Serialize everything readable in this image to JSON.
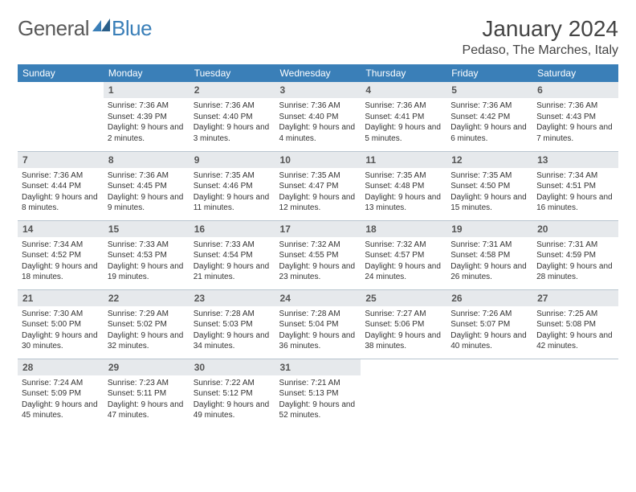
{
  "logo": {
    "general": "General",
    "blue": "Blue"
  },
  "title": "January 2024",
  "location": "Pedaso, The Marches, Italy",
  "colors": {
    "header_bg": "#3a7fb8",
    "header_text": "#ffffff",
    "daynum_bg": "#e6e9ec",
    "row_border": "#b8c5cf",
    "text": "#333333",
    "logo_gray": "#5a5a5a",
    "logo_blue": "#3a7fb8"
  },
  "weekdays": [
    "Sunday",
    "Monday",
    "Tuesday",
    "Wednesday",
    "Thursday",
    "Friday",
    "Saturday"
  ],
  "days": {
    "1": {
      "sunrise": "7:36 AM",
      "sunset": "4:39 PM",
      "daylight": "9 hours and 2 minutes."
    },
    "2": {
      "sunrise": "7:36 AM",
      "sunset": "4:40 PM",
      "daylight": "9 hours and 3 minutes."
    },
    "3": {
      "sunrise": "7:36 AM",
      "sunset": "4:40 PM",
      "daylight": "9 hours and 4 minutes."
    },
    "4": {
      "sunrise": "7:36 AM",
      "sunset": "4:41 PM",
      "daylight": "9 hours and 5 minutes."
    },
    "5": {
      "sunrise": "7:36 AM",
      "sunset": "4:42 PM",
      "daylight": "9 hours and 6 minutes."
    },
    "6": {
      "sunrise": "7:36 AM",
      "sunset": "4:43 PM",
      "daylight": "9 hours and 7 minutes."
    },
    "7": {
      "sunrise": "7:36 AM",
      "sunset": "4:44 PM",
      "daylight": "9 hours and 8 minutes."
    },
    "8": {
      "sunrise": "7:36 AM",
      "sunset": "4:45 PM",
      "daylight": "9 hours and 9 minutes."
    },
    "9": {
      "sunrise": "7:35 AM",
      "sunset": "4:46 PM",
      "daylight": "9 hours and 11 minutes."
    },
    "10": {
      "sunrise": "7:35 AM",
      "sunset": "4:47 PM",
      "daylight": "9 hours and 12 minutes."
    },
    "11": {
      "sunrise": "7:35 AM",
      "sunset": "4:48 PM",
      "daylight": "9 hours and 13 minutes."
    },
    "12": {
      "sunrise": "7:35 AM",
      "sunset": "4:50 PM",
      "daylight": "9 hours and 15 minutes."
    },
    "13": {
      "sunrise": "7:34 AM",
      "sunset": "4:51 PM",
      "daylight": "9 hours and 16 minutes."
    },
    "14": {
      "sunrise": "7:34 AM",
      "sunset": "4:52 PM",
      "daylight": "9 hours and 18 minutes."
    },
    "15": {
      "sunrise": "7:33 AM",
      "sunset": "4:53 PM",
      "daylight": "9 hours and 19 minutes."
    },
    "16": {
      "sunrise": "7:33 AM",
      "sunset": "4:54 PM",
      "daylight": "9 hours and 21 minutes."
    },
    "17": {
      "sunrise": "7:32 AM",
      "sunset": "4:55 PM",
      "daylight": "9 hours and 23 minutes."
    },
    "18": {
      "sunrise": "7:32 AM",
      "sunset": "4:57 PM",
      "daylight": "9 hours and 24 minutes."
    },
    "19": {
      "sunrise": "7:31 AM",
      "sunset": "4:58 PM",
      "daylight": "9 hours and 26 minutes."
    },
    "20": {
      "sunrise": "7:31 AM",
      "sunset": "4:59 PM",
      "daylight": "9 hours and 28 minutes."
    },
    "21": {
      "sunrise": "7:30 AM",
      "sunset": "5:00 PM",
      "daylight": "9 hours and 30 minutes."
    },
    "22": {
      "sunrise": "7:29 AM",
      "sunset": "5:02 PM",
      "daylight": "9 hours and 32 minutes."
    },
    "23": {
      "sunrise": "7:28 AM",
      "sunset": "5:03 PM",
      "daylight": "9 hours and 34 minutes."
    },
    "24": {
      "sunrise": "7:28 AM",
      "sunset": "5:04 PM",
      "daylight": "9 hours and 36 minutes."
    },
    "25": {
      "sunrise": "7:27 AM",
      "sunset": "5:06 PM",
      "daylight": "9 hours and 38 minutes."
    },
    "26": {
      "sunrise": "7:26 AM",
      "sunset": "5:07 PM",
      "daylight": "9 hours and 40 minutes."
    },
    "27": {
      "sunrise": "7:25 AM",
      "sunset": "5:08 PM",
      "daylight": "9 hours and 42 minutes."
    },
    "28": {
      "sunrise": "7:24 AM",
      "sunset": "5:09 PM",
      "daylight": "9 hours and 45 minutes."
    },
    "29": {
      "sunrise": "7:23 AM",
      "sunset": "5:11 PM",
      "daylight": "9 hours and 47 minutes."
    },
    "30": {
      "sunrise": "7:22 AM",
      "sunset": "5:12 PM",
      "daylight": "9 hours and 49 minutes."
    },
    "31": {
      "sunrise": "7:21 AM",
      "sunset": "5:13 PM",
      "daylight": "9 hours and 52 minutes."
    }
  },
  "labels": {
    "sunrise": "Sunrise:",
    "sunset": "Sunset:",
    "daylight": "Daylight:"
  },
  "grid": {
    "first_weekday": 1,
    "days_in_month": 31,
    "cols": 7
  }
}
